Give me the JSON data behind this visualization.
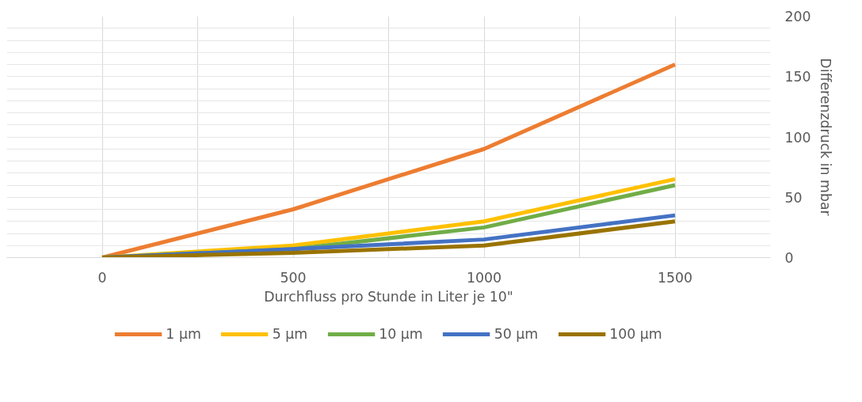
{
  "chart_data": {
    "type": "line",
    "xlabel": "Durchfluss pro Stunde in Liter je 10\"",
    "ylabel": "Differenzdruck in mbar",
    "x": [
      0,
      500,
      1000,
      1500
    ],
    "series": [
      {
        "name": "1 µm",
        "color": "#ed7d31",
        "values": [
          0,
          40,
          90,
          160
        ]
      },
      {
        "name": "5 µm",
        "color": "#ffc000",
        "values": [
          0,
          10,
          30,
          65
        ]
      },
      {
        "name": "10 µm",
        "color": "#70ad47",
        "values": [
          0,
          7,
          25,
          60
        ]
      },
      {
        "name": "50 µm",
        "color": "#4472c4",
        "values": [
          0,
          7,
          15,
          35
        ]
      },
      {
        "name": "100 µm",
        "color": "#997300",
        "values": [
          0,
          4,
          10,
          30
        ]
      }
    ],
    "xlim": [
      -250,
      1750
    ],
    "xticks": [
      0,
      {
        "value": 250,
        "label": null
      },
      500,
      {
        "value": 750,
        "label": null
      },
      1000,
      {
        "value": 1250,
        "label": null
      },
      1500
    ],
    "ylim": [
      0,
      200
    ],
    "yticks": [
      0,
      {
        "value": 10,
        "label": null
      },
      {
        "value": 20,
        "label": null
      },
      {
        "value": 30,
        "label": null
      },
      {
        "value": 40,
        "label": null
      },
      50,
      {
        "value": 60,
        "label": null
      },
      {
        "value": 70,
        "label": null
      },
      {
        "value": 80,
        "label": null
      },
      {
        "value": 90,
        "label": null
      },
      100,
      {
        "value": 110,
        "label": null
      },
      {
        "value": 120,
        "label": null
      },
      {
        "value": 130,
        "label": null
      },
      {
        "value": 140,
        "label": null
      },
      150,
      {
        "value": 160,
        "label": null
      },
      {
        "value": 170,
        "label": null
      },
      {
        "value": 180,
        "label": null
      },
      {
        "value": 190,
        "label": null
      },
      200
    ],
    "grid": true,
    "legend": "bottom",
    "line_style": "solid"
  }
}
